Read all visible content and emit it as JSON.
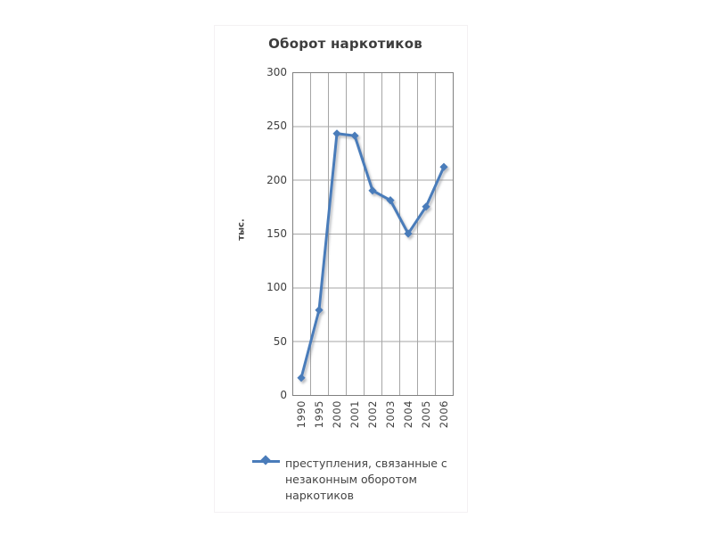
{
  "chart_data": {
    "type": "line",
    "title": "Оборот наркотиков",
    "ylabel": "тыс.",
    "xlabel": "",
    "categories": [
      "1990",
      "1995",
      "2000",
      "2001",
      "2002",
      "2003",
      "2004",
      "2005",
      "2006"
    ],
    "series": [
      {
        "name": "преступления, связанные с незаконным оборотом наркотиков",
        "values": [
          16,
          79,
          243,
          241,
          190,
          181,
          150,
          175,
          212
        ]
      }
    ],
    "ylim": [
      0,
      300
    ],
    "yticks": [
      300,
      250,
      200,
      150,
      100,
      50,
      0
    ],
    "grid": "both",
    "legend_position": "bottom",
    "legend_lines": [
      "преступления, связанные с",
      "незаконным оборотом",
      "наркотиков"
    ],
    "marker": "diamond",
    "colors": {
      "series": "#4a7cba",
      "gridline": "#a6a6a6",
      "frame": "#808080",
      "title_text": "#3d3d3d",
      "tick_text": "#3f3f3f",
      "legend_text": "#444444",
      "background": "#ffffff"
    }
  }
}
